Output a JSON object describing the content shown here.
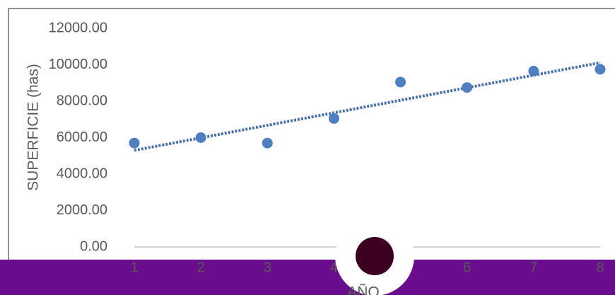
{
  "chart_data": {
    "type": "scatter",
    "y_label": "SUPERFICIE (has)",
    "x_label": "AÑO",
    "x": [
      1,
      2,
      3,
      4,
      5,
      6,
      7,
      8
    ],
    "series": [
      {
        "color": "#4f7fbf",
        "values": [
          5700,
          6000,
          5700,
          7050,
          9050,
          8750,
          9650,
          9750
        ]
      }
    ],
    "trendline": {
      "type": "linear",
      "color": "#4a72a8"
    },
    "xlim": [
      1,
      8
    ],
    "xticks": [
      1,
      2,
      3,
      4,
      5,
      6,
      7,
      8
    ],
    "ylim": [
      0,
      12000
    ],
    "yticks": [
      {
        "value": 0,
        "label": "0.00"
      },
      {
        "value": 2000,
        "label": "2000.00"
      },
      {
        "value": 4000,
        "label": "4000.00"
      },
      {
        "value": 6000,
        "label": "6000.00"
      },
      {
        "value": 8000,
        "label": "8000.00"
      },
      {
        "value": 10000,
        "label": "10000.00"
      },
      {
        "value": 12000,
        "label": "12000.00"
      }
    ]
  }
}
